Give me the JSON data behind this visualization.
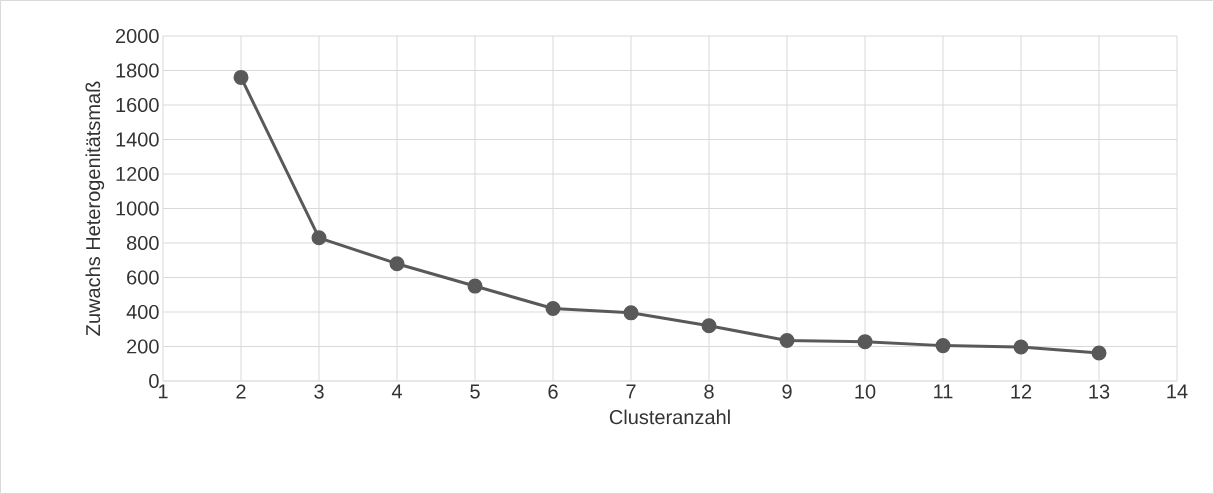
{
  "chart_data": {
    "type": "line",
    "xlabel": "Clusteranzahl",
    "ylabel": "Zuwachs Heterogenitätsmaß",
    "x": [
      2,
      3,
      4,
      5,
      6,
      7,
      8,
      9,
      10,
      11,
      12,
      13
    ],
    "series": [
      {
        "color": "#595959",
        "values": [
          1760,
          830,
          680,
          550,
          420,
          395,
          320,
          235,
          228,
          205,
          197,
          162
        ]
      }
    ],
    "xlim": [
      1,
      14
    ],
    "xticks": [
      1,
      2,
      3,
      4,
      5,
      6,
      7,
      8,
      9,
      10,
      11,
      12,
      13,
      14
    ],
    "ylim": [
      0,
      2000
    ],
    "yticks": [
      0,
      200,
      400,
      600,
      800,
      1000,
      1200,
      1400,
      1600,
      1800,
      2000
    ],
    "grid": true,
    "marker": "circle",
    "line_style": "solid"
  }
}
